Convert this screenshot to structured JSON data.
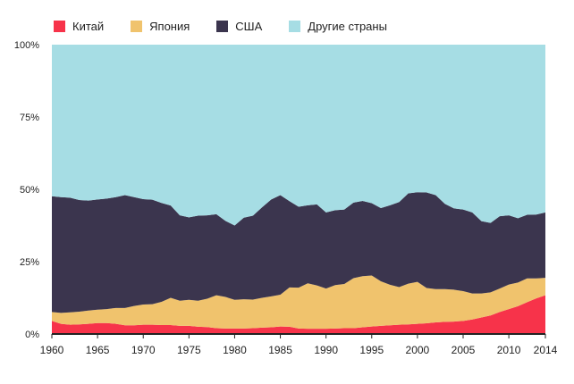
{
  "chart_data": {
    "type": "area",
    "stacked": true,
    "normalized_percent": true,
    "x": [
      1960,
      1961,
      1962,
      1963,
      1964,
      1965,
      1966,
      1967,
      1968,
      1969,
      1970,
      1971,
      1972,
      1973,
      1974,
      1975,
      1976,
      1977,
      1978,
      1979,
      1980,
      1981,
      1982,
      1983,
      1984,
      1985,
      1986,
      1987,
      1988,
      1989,
      1990,
      1991,
      1992,
      1993,
      1994,
      1995,
      1996,
      1997,
      1998,
      1999,
      2000,
      2001,
      2002,
      2003,
      2004,
      2005,
      2006,
      2007,
      2008,
      2009,
      2010,
      2011,
      2012,
      2013,
      2014
    ],
    "x_ticks": [
      1960,
      1965,
      1970,
      1975,
      1980,
      1985,
      1990,
      1995,
      2000,
      2005,
      2010,
      2014
    ],
    "y_ticks": [
      0,
      25,
      50,
      75,
      100
    ],
    "y_tick_labels": [
      "0%",
      "25%",
      "50%",
      "75%",
      "100%"
    ],
    "ylim": [
      0,
      100
    ],
    "grid": false,
    "legend_position": "top-left",
    "title": "",
    "xlabel": "",
    "ylabel": "",
    "series": [
      {
        "name": "Китай",
        "color": "#f7334a",
        "values": [
          4.5,
          3.5,
          3.2,
          3.3,
          3.5,
          3.8,
          3.8,
          3.5,
          3.0,
          3.0,
          3.2,
          3.2,
          3.1,
          3.1,
          2.8,
          2.8,
          2.5,
          2.4,
          2.0,
          1.9,
          1.9,
          1.9,
          2.0,
          2.2,
          2.3,
          2.6,
          2.5,
          1.9,
          1.8,
          1.8,
          1.8,
          1.9,
          2.0,
          2.0,
          2.3,
          2.6,
          2.8,
          3.0,
          3.2,
          3.3,
          3.5,
          3.7,
          4.0,
          4.2,
          4.3,
          4.5,
          5.0,
          5.7,
          6.4,
          7.6,
          8.6,
          9.6,
          11.0,
          12.3,
          13.4
        ]
      },
      {
        "name": "Япония",
        "color": "#f0c36d",
        "values": [
          3.1,
          3.8,
          4.3,
          4.4,
          4.6,
          4.6,
          4.8,
          5.5,
          6.0,
          6.7,
          7.0,
          7.1,
          8.0,
          9.4,
          8.7,
          9.0,
          9.0,
          9.8,
          11.4,
          10.9,
          9.9,
          10.1,
          9.9,
          10.3,
          10.7,
          11.0,
          13.6,
          14.1,
          15.7,
          15.0,
          13.9,
          15.0,
          15.3,
          17.3,
          17.7,
          17.6,
          15.4,
          14.0,
          13.0,
          14.1,
          14.5,
          12.2,
          11.5,
          11.3,
          11.0,
          10.3,
          9.0,
          8.3,
          8.0,
          8.1,
          8.5,
          8.2,
          8.2,
          6.9,
          6.0
        ]
      },
      {
        "name": "США",
        "color": "#3b354e",
        "values": [
          40.0,
          40.0,
          39.6,
          38.6,
          38.0,
          38.1,
          38.2,
          38.3,
          39.0,
          37.6,
          36.4,
          36.1,
          34.2,
          31.9,
          29.5,
          28.5,
          29.4,
          28.8,
          28.0,
          26.3,
          25.7,
          28.2,
          29.0,
          31.3,
          33.5,
          34.4,
          29.8,
          28.0,
          27.0,
          28.0,
          26.3,
          25.9,
          25.7,
          26.1,
          26.0,
          25.0,
          25.3,
          27.5,
          29.4,
          31.2,
          31.0,
          33.0,
          32.5,
          29.5,
          28.1,
          28.2,
          28.0,
          25.0,
          24.0,
          25.0,
          23.9,
          22.2,
          22.0,
          22.1,
          22.6
        ]
      },
      {
        "name": "Другие страны",
        "color": "#a6dde4",
        "values": [
          52.4,
          52.7,
          52.9,
          53.7,
          53.9,
          53.5,
          53.2,
          52.7,
          52.0,
          52.7,
          53.4,
          53.6,
          54.7,
          55.6,
          59.0,
          59.7,
          59.1,
          59.0,
          58.6,
          60.9,
          62.5,
          59.8,
          59.1,
          56.2,
          53.5,
          52.0,
          54.1,
          56.0,
          55.5,
          55.2,
          58.0,
          57.2,
          57.0,
          54.6,
          54.0,
          54.8,
          56.5,
          55.5,
          54.4,
          51.4,
          51.0,
          51.1,
          52.0,
          55.0,
          56.6,
          57.0,
          58.0,
          61.0,
          61.6,
          59.3,
          59.0,
          60.0,
          58.8,
          58.7,
          58.0
        ]
      }
    ]
  }
}
